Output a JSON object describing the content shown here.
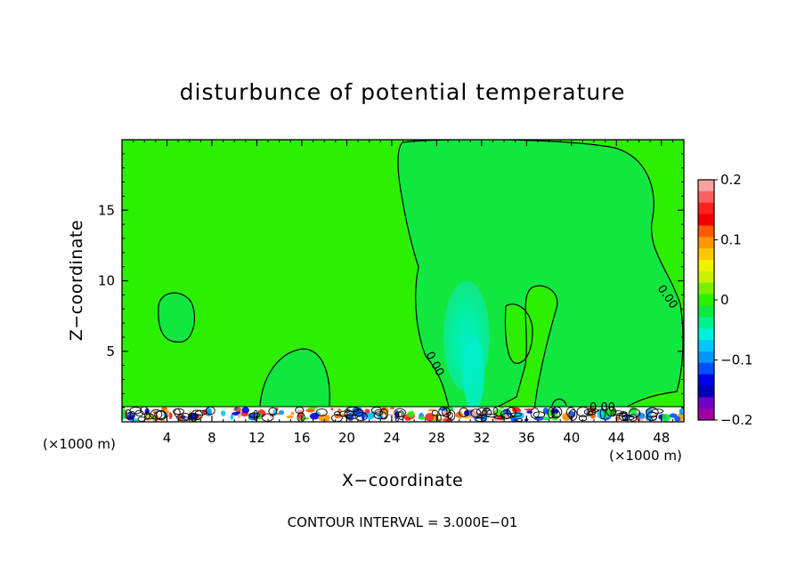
{
  "chart_data": {
    "type": "heatmap",
    "title": "disturbunce of potential temperature",
    "xlabel": "X−coordinate",
    "ylabel": "Z−coordinate",
    "x_unit_left": "(×1000 m)",
    "x_unit_right": "(×1000 m)",
    "xlim": [
      0,
      50
    ],
    "ylim": [
      0,
      20
    ],
    "xticks": [
      4,
      8,
      12,
      16,
      20,
      24,
      28,
      32,
      36,
      40,
      44,
      48
    ],
    "yticks": [
      5,
      10,
      15
    ],
    "background_value": 0,
    "colorbar": {
      "range": [
        -0.2,
        0.2
      ],
      "tick_values": [
        0.2,
        0.1,
        0,
        -0.1,
        -0.2
      ],
      "tick_labels": [
        "0.2",
        "0.1",
        "0",
        "−0.1",
        "−0.2"
      ],
      "colors": [
        "#ffa0a0",
        "#ff6060",
        "#ff2020",
        "#f00000",
        "#ff5a00",
        "#ff9600",
        "#ffc800",
        "#f0f000",
        "#c8f000",
        "#7af000",
        "#2cf000",
        "#10e840",
        "#00f08c",
        "#00f0dc",
        "#00c8ff",
        "#0096ff",
        "#0050ff",
        "#0000e6",
        "#0000b4",
        "#6e00c8",
        "#a000a0"
      ]
    },
    "contour_labels": [
      "0.00",
      "0.00",
      "0.00"
    ],
    "footer": "CONTOUR INTERVAL = 3.000E−01",
    "grid": false,
    "legend": "colorbar right"
  }
}
